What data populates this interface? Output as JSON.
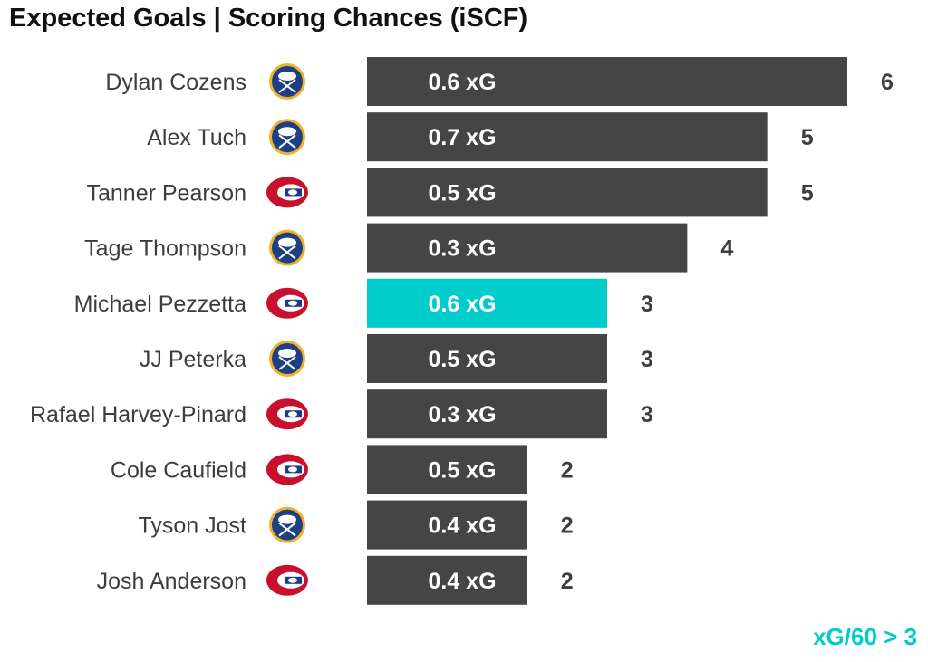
{
  "title": "Expected Goals | Scoring Chances (iSCF)",
  "footnote": "xG/60 > 3",
  "colors": {
    "bar": "#454545",
    "highlight": "#00cccc",
    "sabres_blue": "#1f3f84",
    "sabres_gold": "#f0b22e",
    "habs_red": "#c8102e",
    "habs_blue": "#1e3a8a"
  },
  "chart_data": {
    "type": "bar",
    "orientation": "horizontal",
    "title": "Expected Goals | Scoring Chances (iSCF)",
    "categories": [
      "Dylan Cozens",
      "Alex Tuch",
      "Tanner Pearson",
      "Tage Thompson",
      "Michael Pezzetta",
      "JJ Peterka",
      "Rafael Harvey-Pinard",
      "Cole Caufield",
      "Tyson Jost",
      "Josh Anderson"
    ],
    "values": [
      6,
      5,
      5,
      4,
      3,
      3,
      3,
      2,
      2,
      2
    ],
    "xg_labels": [
      "0.6 xG",
      "0.7 xG",
      "0.5 xG",
      "0.3 xG",
      "0.6 xG",
      "0.5 xG",
      "0.3 xG",
      "0.5 xG",
      "0.4 xG",
      "0.4 xG"
    ],
    "team_logos": [
      "sabres-logo-icon",
      "sabres-logo-icon",
      "canadiens-logo-icon",
      "sabres-logo-icon",
      "canadiens-logo-icon",
      "sabres-logo-icon",
      "canadiens-logo-icon",
      "canadiens-logo-icon",
      "sabres-logo-icon",
      "canadiens-logo-icon"
    ],
    "highlighted": [
      false,
      false,
      false,
      false,
      true,
      false,
      false,
      false,
      false,
      false
    ],
    "xlim": [
      0,
      6
    ],
    "grid": false,
    "legend": "none"
  }
}
